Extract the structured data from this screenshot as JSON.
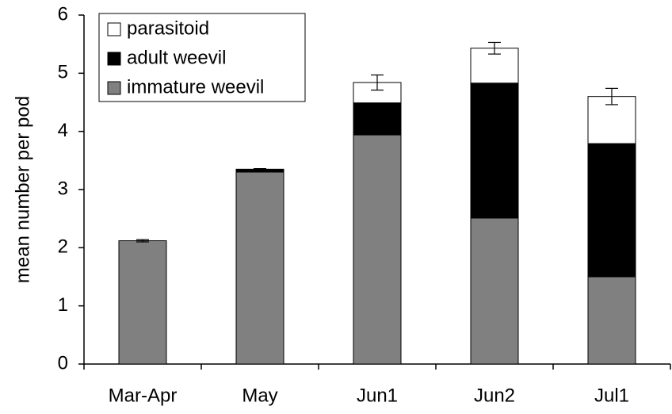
{
  "chart_data": {
    "type": "stacked_bar",
    "y_label": "mean number per pod",
    "categories": [
      "Mar-Apr",
      "May",
      "Jun1",
      "Jun2",
      "Jul1"
    ],
    "series": [
      {
        "name": "immature weevil",
        "color": "#808080",
        "values": [
          2.12,
          3.3,
          3.94,
          2.51,
          1.5
        ]
      },
      {
        "name": "adult weevil",
        "color": "#000000",
        "values": [
          0,
          0.05,
          0.55,
          2.32,
          2.29
        ]
      },
      {
        "name": "parasitoid",
        "color": "#ffffff",
        "values": [
          0,
          0,
          0.35,
          0.6,
          0.81
        ]
      }
    ],
    "errors": [
      0.02,
      0.01,
      0.13,
      0.1,
      0.14
    ],
    "ylim": [
      0,
      6
    ],
    "yticks": [
      0,
      1,
      2,
      3,
      4,
      5,
      6
    ],
    "legend": "upper left"
  }
}
